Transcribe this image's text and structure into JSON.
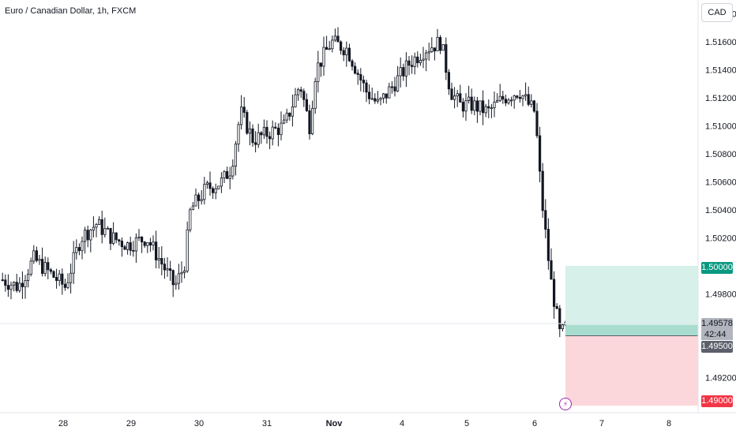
{
  "header": {
    "symbol_title": "Euro / Canadian Dollar, 1h, FXCM",
    "currency": "CAD"
  },
  "price_axis": {
    "ticks": [
      "1.51800",
      "1.51600",
      "1.51400",
      "1.51200",
      "1.51000",
      "1.50800",
      "1.50600",
      "1.50400",
      "1.50200",
      "1.49800",
      "1.49200"
    ]
  },
  "time_axis": {
    "ticks": [
      "28",
      "29",
      "30",
      "31",
      "Nov",
      "4",
      "5",
      "6",
      "7",
      "8"
    ]
  },
  "price_tags": {
    "target": "1.50000",
    "current": "1.49578",
    "countdown": "42:44",
    "entry": "1.49500",
    "stop": "1.49000"
  },
  "colors": {
    "candle": "#131722",
    "profit_zone": "#d7f0ea",
    "profit_edge": "#a7dccf",
    "loss_zone": "#fbd7db",
    "target_tag": "#089981",
    "stop_tag": "#f23645",
    "entry_tag": "#5d606b",
    "current_tag": "#b2b5be"
  },
  "icons": {
    "event_marker": "lightning-icon"
  },
  "chart_data": {
    "type": "candlestick",
    "title": "Euro / Canadian Dollar, 1h, FXCM",
    "ylim": [
      1.4895,
      1.519
    ],
    "x": [
      "28",
      "29",
      "30",
      "31",
      "Nov",
      "4",
      "5",
      "6",
      "7",
      "8"
    ],
    "close_path": [
      [
        0.0,
        1.499
      ],
      [
        0.5,
        1.4985
      ],
      [
        1.0,
        1.5005
      ],
      [
        1.5,
        1.4995
      ],
      [
        2.0,
        1.4985
      ],
      [
        2.5,
        1.502
      ],
      [
        3.0,
        1.503
      ],
      [
        3.5,
        1.502
      ],
      [
        4.0,
        1.5015
      ],
      [
        4.6,
        1.502
      ],
      [
        5.0,
        1.5005
      ],
      [
        5.5,
        1.4985
      ],
      [
        5.8,
        1.5
      ],
      [
        6.0,
        1.504
      ],
      [
        6.5,
        1.5055
      ],
      [
        7.0,
        1.506
      ],
      [
        7.3,
        1.507
      ],
      [
        7.6,
        1.511
      ],
      [
        8.0,
        1.509
      ],
      [
        8.5,
        1.5095
      ],
      [
        9.0,
        1.51
      ],
      [
        9.5,
        1.513
      ],
      [
        9.8,
        1.51
      ],
      [
        10.0,
        1.514
      ],
      [
        10.5,
        1.516
      ],
      [
        11.0,
        1.5155
      ],
      [
        11.3,
        1.514
      ],
      [
        11.6,
        1.5125
      ],
      [
        12.0,
        1.5115
      ],
      [
        12.5,
        1.513
      ],
      [
        13.0,
        1.5145
      ],
      [
        13.5,
        1.5155
      ],
      [
        14.0,
        1.516
      ],
      [
        14.3,
        1.5125
      ],
      [
        14.6,
        1.5115
      ],
      [
        15.0,
        1.5115
      ],
      [
        15.5,
        1.511
      ],
      [
        16.0,
        1.512
      ],
      [
        16.5,
        1.5125
      ],
      [
        16.8,
        1.5115
      ],
      [
        17.0,
        1.511
      ],
      [
        17.2,
        1.505
      ],
      [
        17.5,
        1.499
      ],
      [
        17.8,
        1.495
      ],
      [
        18.0,
        1.4957
      ]
    ],
    "annotations": {
      "target": 1.5,
      "current": 1.49578,
      "entry": 1.495,
      "stop": 1.49
    },
    "grid": false
  }
}
